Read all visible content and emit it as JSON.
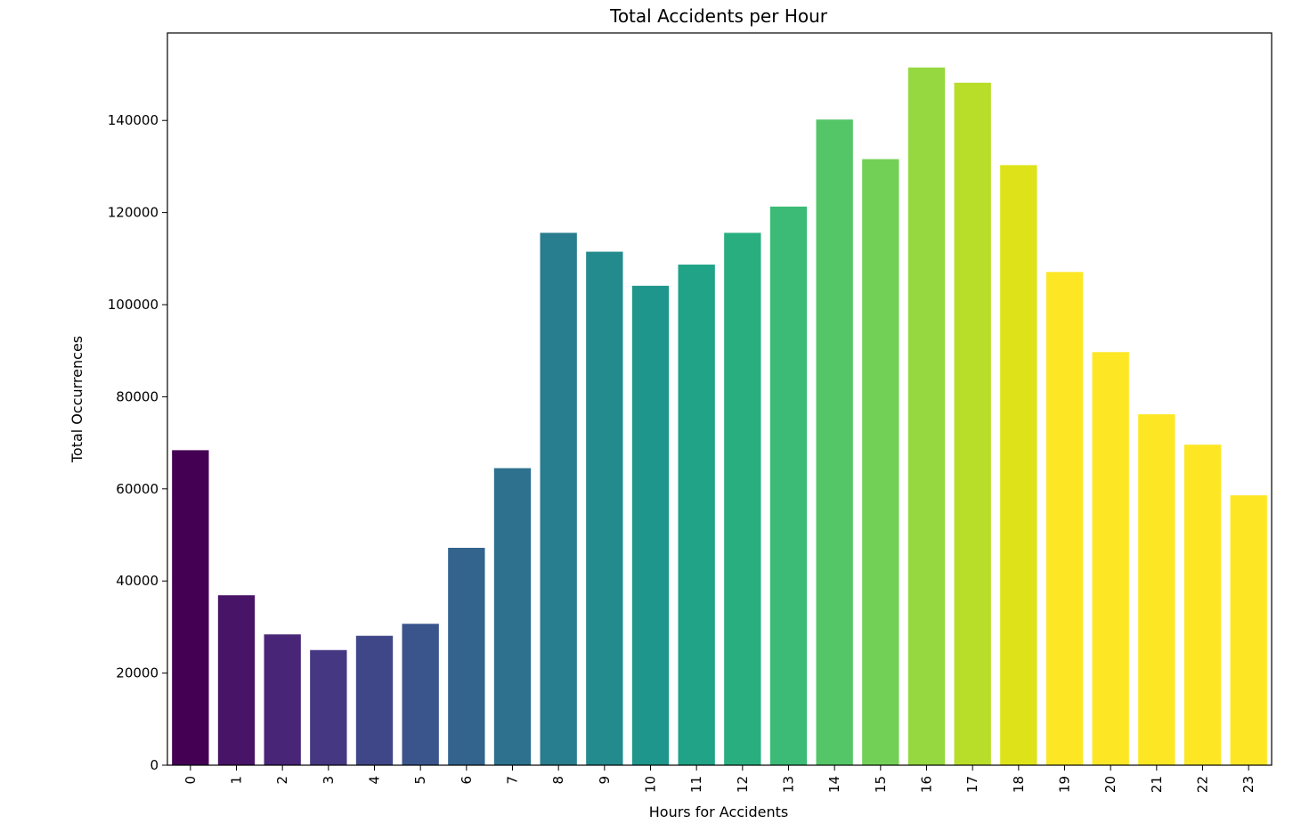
{
  "chart_data": {
    "type": "bar",
    "title": "Total Accidents per Hour",
    "xlabel": "Hours for Accidents",
    "ylabel": "Total Occurrences",
    "categories": [
      "0",
      "1",
      "2",
      "3",
      "4",
      "5",
      "6",
      "7",
      "8",
      "9",
      "10",
      "11",
      "12",
      "13",
      "14",
      "15",
      "16",
      "17",
      "18",
      "19",
      "20",
      "21",
      "22",
      "23"
    ],
    "values": [
      68400,
      36900,
      28400,
      25000,
      28100,
      30700,
      47200,
      64500,
      115600,
      111500,
      104100,
      108700,
      115600,
      121300,
      140200,
      131600,
      151500,
      148200,
      130300,
      107100,
      89700,
      76200,
      69600,
      58600
    ],
    "colors": [
      "#440154",
      "#481467",
      "#482576",
      "#453781",
      "#3f4788",
      "#39558c",
      "#32648e",
      "#2d718e",
      "#287d8e",
      "#238a8d",
      "#1f968b",
      "#20a386",
      "#29af7f",
      "#3bbb75",
      "#55c667",
      "#73d056",
      "#95d840",
      "#b8de29",
      "#dde318",
      "#fde725",
      "#fde725",
      "#fde725",
      "#fde725",
      "#fde725"
    ],
    "yticks": [
      0,
      20000,
      40000,
      60000,
      80000,
      100000,
      120000,
      140000
    ],
    "ylim": [
      0,
      159000
    ],
    "grid": false,
    "legend": "none"
  }
}
